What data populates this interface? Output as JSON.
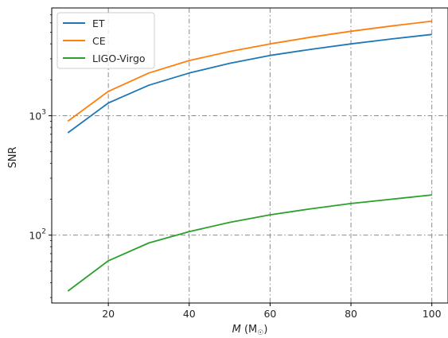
{
  "chart_data": {
    "type": "line",
    "xlabel": "M (M☉)",
    "xlabel_var": "M",
    "xlabel_unit": "(M",
    "xlabel_sub": "☉",
    "xlabel_close": ")",
    "ylabel": "SNR",
    "yscale": "log",
    "xlim": [
      6,
      104
    ],
    "ylim": [
      27,
      8000
    ],
    "x_ticks": [
      20,
      40,
      60,
      80,
      100
    ],
    "x_tick_labels": [
      "20",
      "40",
      "60",
      "80",
      "100"
    ],
    "y_major_ticks": [
      100,
      1000
    ],
    "y_tick_labels": [
      {
        "base": "10",
        "exp": "2"
      },
      {
        "base": "10",
        "exp": "3"
      }
    ],
    "y_minor_ticks": [
      30,
      40,
      50,
      60,
      70,
      80,
      90,
      200,
      300,
      400,
      500,
      600,
      700,
      800,
      900,
      2000,
      3000,
      4000,
      5000,
      6000,
      7000
    ],
    "grid": true,
    "grid_style": "dash-dot",
    "legend_position": "top-left",
    "x": [
      10,
      20,
      30,
      40,
      50,
      60,
      70,
      80,
      90,
      100
    ],
    "series": [
      {
        "name": "ET",
        "color": "#1f77b4",
        "values": [
          720,
          1280,
          1800,
          2280,
          2750,
          3200,
          3600,
          4000,
          4400,
          4800
        ]
      },
      {
        "name": "CE",
        "color": "#ff7f0e",
        "values": [
          900,
          1600,
          2280,
          2900,
          3450,
          4000,
          4550,
          5100,
          5650,
          6200
        ]
      },
      {
        "name": "LIGO-Virgo",
        "color": "#2ca02c",
        "values": [
          34,
          61,
          86,
          107,
          128,
          148,
          166,
          184,
          200,
          217
        ]
      }
    ]
  }
}
